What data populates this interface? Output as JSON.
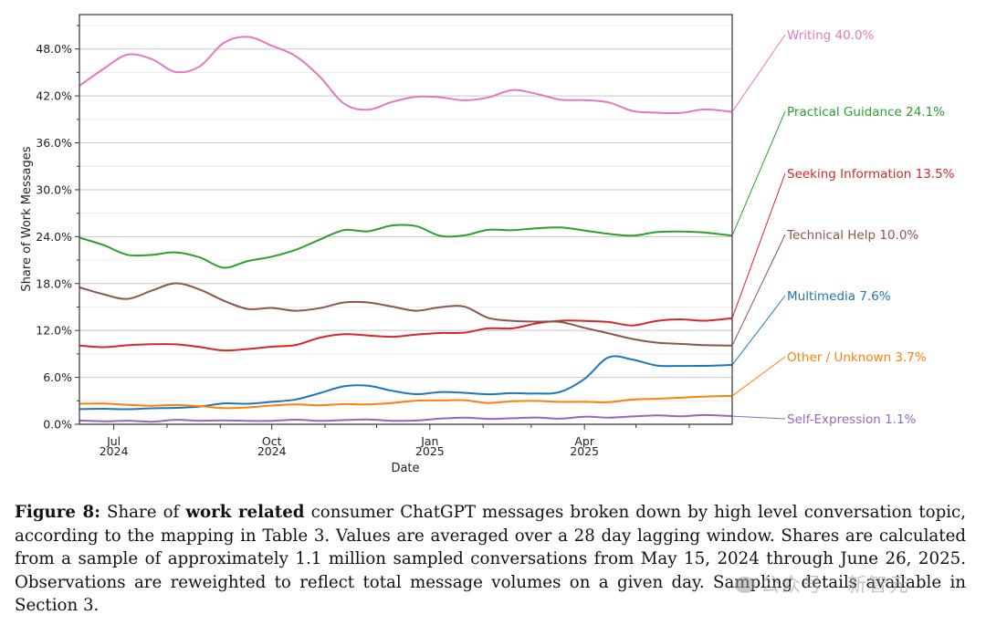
{
  "chart_data": {
    "type": "line",
    "title": "",
    "xlabel": "Date",
    "ylabel": "Share of Work Messages",
    "ylim": [
      0,
      52.4
    ],
    "y_ticks": [
      "0.0%",
      "6.0%",
      "12.0%",
      "18.0%",
      "24.0%",
      "30.0%",
      "36.0%",
      "42.0%",
      "48.0%"
    ],
    "y_tick_values": [
      0,
      6,
      12,
      18,
      24,
      30,
      36,
      42,
      48
    ],
    "x_start": "2024-06-11",
    "x_end": "2025-06-26",
    "x_ticks": [
      {
        "date": "2024-07-01",
        "line1": "Jul",
        "line2": "2024"
      },
      {
        "date": "2024-10-01",
        "line1": "Oct",
        "line2": "2024"
      },
      {
        "date": "2025-01-01",
        "line1": "Jan",
        "line2": "2025"
      },
      {
        "date": "2025-04-01",
        "line1": "Apr",
        "line2": "2025"
      }
    ],
    "x_minor_ticks": [
      "2024-08-01",
      "2024-09-01",
      "2024-11-01",
      "2024-12-01",
      "2025-02-01",
      "2025-03-01",
      "2025-05-01",
      "2025-06-01"
    ],
    "grid": true,
    "legend": "end-labels-right",
    "x_days": [
      0,
      14,
      28,
      42,
      56,
      70,
      84,
      98,
      112,
      126,
      140,
      154,
      168,
      182,
      196,
      210,
      224,
      238,
      252,
      266,
      280,
      294,
      308,
      322,
      336,
      350,
      364,
      380
    ],
    "series": [
      {
        "name": "Writing",
        "end_label": "Writing  40.0%",
        "color": "#e377c2",
        "values": [
          43.3,
          45.5,
          47.2,
          46.8,
          45.0,
          45.8,
          48.8,
          49.5,
          48.5,
          47.0,
          44.5,
          41.0,
          40.2,
          41.3,
          41.8,
          41.9,
          41.4,
          41.8,
          42.8,
          42.2,
          41.6,
          41.4,
          41.2,
          40.1,
          39.8,
          39.9,
          40.2,
          40.0
        ]
      },
      {
        "name": "Practical Guidance",
        "end_label": "Practical Guidance  24.1%",
        "color": "#2ca02c",
        "values": [
          23.8,
          23.0,
          21.6,
          21.7,
          22.0,
          21.3,
          20.1,
          20.8,
          21.5,
          22.3,
          23.6,
          24.9,
          24.6,
          25.5,
          25.3,
          24.1,
          24.2,
          24.8,
          24.9,
          25.0,
          25.2,
          24.8,
          24.3,
          24.2,
          24.5,
          24.7,
          24.5,
          24.1
        ]
      },
      {
        "name": "Seeking Information",
        "end_label": "Seeking Information  13.5%",
        "color": "#d62728",
        "values": [
          10.0,
          9.9,
          10.1,
          10.2,
          10.3,
          9.8,
          9.5,
          9.6,
          9.9,
          10.2,
          11.0,
          11.6,
          11.3,
          11.2,
          11.5,
          11.6,
          11.8,
          12.2,
          12.3,
          12.9,
          13.2,
          13.3,
          13.0,
          12.7,
          13.2,
          13.4,
          13.3,
          13.5
        ]
      },
      {
        "name": "Technical Help",
        "end_label": "Technical Help  10.0%",
        "color": "#8c564b",
        "values": [
          17.5,
          16.6,
          16.1,
          17.0,
          18.1,
          17.2,
          15.8,
          14.8,
          14.8,
          14.6,
          14.8,
          15.6,
          15.6,
          15.0,
          14.6,
          14.9,
          15.1,
          13.6,
          13.2,
          13.2,
          13.0,
          12.4,
          11.6,
          10.9,
          10.5,
          10.2,
          10.2,
          10.0
        ]
      },
      {
        "name": "Multimedia",
        "end_label": "Multimedia  7.6%",
        "color": "#1f77b4",
        "values": [
          2.0,
          1.9,
          2.0,
          2.0,
          2.1,
          2.3,
          2.6,
          2.7,
          2.8,
          3.2,
          4.0,
          4.8,
          5.0,
          4.2,
          3.9,
          4.1,
          4.0,
          3.9,
          3.9,
          4.0,
          4.1,
          5.8,
          8.6,
          8.2,
          7.6,
          7.4,
          7.5,
          7.6
        ]
      },
      {
        "name": "Other / Unknown",
        "end_label": "Other / Unknown  3.7%",
        "color": "#ff7f0e",
        "values": [
          2.7,
          2.6,
          2.5,
          2.4,
          2.4,
          2.4,
          2.0,
          2.2,
          2.4,
          2.5,
          2.5,
          2.5,
          2.6,
          2.7,
          3.0,
          3.1,
          3.0,
          2.8,
          2.9,
          3.0,
          2.9,
          2.8,
          2.9,
          3.1,
          3.3,
          3.4,
          3.5,
          3.7
        ]
      },
      {
        "name": "Self-Expression",
        "end_label": "Self-Expression  1.1%",
        "color": "#9467bd",
        "values": [
          0.5,
          0.4,
          0.4,
          0.4,
          0.5,
          0.5,
          0.5,
          0.4,
          0.5,
          0.5,
          0.5,
          0.5,
          0.6,
          0.5,
          0.4,
          0.8,
          0.8,
          0.7,
          0.8,
          0.8,
          0.8,
          0.9,
          0.9,
          1.0,
          1.1,
          1.1,
          1.1,
          1.1
        ]
      }
    ]
  },
  "caption": {
    "label": "Figure 8:",
    "part1": " Share of ",
    "bold": "work related",
    "part2": " consumer ChatGPT messages broken down by high level conversation topic, according to the mapping in Table 3. Values are averaged over a 28 day lagging window. Shares are calculated from a sample of approximately 1.1 million sampled conversations from May 15, 2024 through June 26, 2025. Observations are reweighted to reflect total message volumes on a given day. Sampling details available in Section 3."
  },
  "watermark": {
    "text": "公众号 · 新智元"
  }
}
